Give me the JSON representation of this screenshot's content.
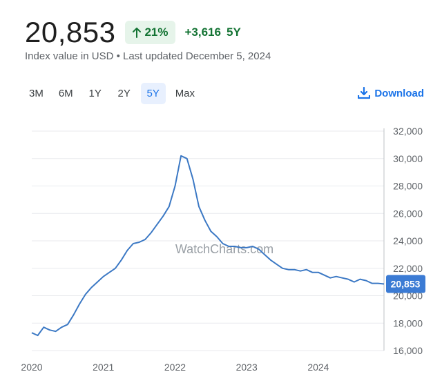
{
  "header": {
    "value": "20,853",
    "percent_change": "21%",
    "abs_change": "+3,616",
    "period": "5Y",
    "subtitle": "Index value in USD • Last updated December 5, 2024"
  },
  "ranges": [
    "3M",
    "6M",
    "1Y",
    "2Y",
    "5Y",
    "Max"
  ],
  "active_range": "5Y",
  "download_label": "Download",
  "colors": {
    "line": "#3b78c4",
    "positive": "#137333",
    "accent": "#1a73e8",
    "positive_bg": "#e6f4ea"
  },
  "chart_data": {
    "type": "line",
    "title": "",
    "watermark": "WatchCharts.com",
    "xlabel": "",
    "ylabel": "",
    "x_ticks": [
      "2020",
      "2021",
      "2022",
      "2023",
      "2024"
    ],
    "y_ticks": [
      "16,000",
      "18,000",
      "20,000",
      "22,000",
      "24,000",
      "26,000",
      "28,000",
      "30,000",
      "32,000"
    ],
    "ylim": [
      16000,
      32000
    ],
    "xlim": [
      "2020-01",
      "2024-12"
    ],
    "grid": true,
    "y_axis_side": "right",
    "last_value_label": "20,853",
    "series": [
      {
        "x": [
          "2020-01",
          "2020-02",
          "2020-03",
          "2020-04",
          "2020-05",
          "2020-06",
          "2020-07",
          "2020-08",
          "2020-09",
          "2020-10",
          "2020-11",
          "2020-12",
          "2021-01",
          "2021-02",
          "2021-03",
          "2021-04",
          "2021-05",
          "2021-06",
          "2021-07",
          "2021-08",
          "2021-09",
          "2021-10",
          "2021-11",
          "2021-12",
          "2022-01",
          "2022-02",
          "2022-03",
          "2022-04",
          "2022-05",
          "2022-06",
          "2022-07",
          "2022-08",
          "2022-09",
          "2022-10",
          "2022-11",
          "2022-12",
          "2023-01",
          "2023-02",
          "2023-03",
          "2023-04",
          "2023-05",
          "2023-06",
          "2023-07",
          "2023-08",
          "2023-09",
          "2023-10",
          "2023-11",
          "2023-12",
          "2024-01",
          "2024-02",
          "2024-03",
          "2024-04",
          "2024-05",
          "2024-06",
          "2024-07",
          "2024-08",
          "2024-09",
          "2024-10",
          "2024-11",
          "2024-12"
        ],
        "values": [
          17300,
          17100,
          17700,
          17500,
          17400,
          17700,
          17900,
          18600,
          19400,
          20100,
          20600,
          21000,
          21400,
          21700,
          22000,
          22600,
          23300,
          23800,
          23900,
          24100,
          24600,
          25200,
          25800,
          26500,
          28000,
          30200,
          30000,
          28500,
          26500,
          25500,
          24700,
          24300,
          23800,
          23600,
          23600,
          23500,
          23500,
          23600,
          23400,
          23000,
          22600,
          22300,
          22000,
          21900,
          21900,
          21800,
          21900,
          21700,
          21700,
          21500,
          21300,
          21400,
          21300,
          21200,
          21000,
          21200,
          21100,
          20900,
          20900,
          20853
        ]
      }
    ]
  }
}
